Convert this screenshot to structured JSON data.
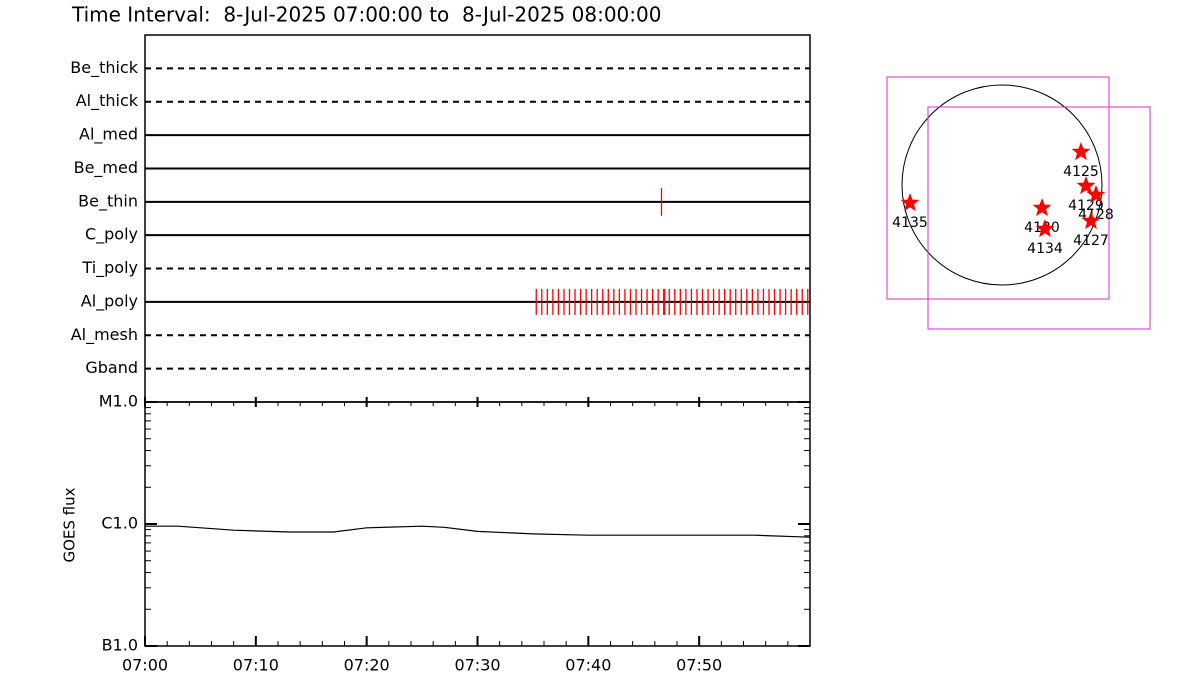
{
  "chart_data": [
    {
      "type": "event",
      "title": "Time Interval:  8-Jul-2025 07:00:00 to  8-Jul-2025 08:00:00",
      "xlim": [
        0,
        60
      ],
      "color": "#ff0000",
      "rows": [
        {
          "name": "Be_thick",
          "style": "dashed",
          "events": []
        },
        {
          "name": "Al_thick",
          "style": "dashed",
          "events": []
        },
        {
          "name": "Al_med",
          "style": "solid",
          "events": []
        },
        {
          "name": "Be_med",
          "style": "solid",
          "events": []
        },
        {
          "name": "Be_thin",
          "style": "solid",
          "events": [
            46.6
          ]
        },
        {
          "name": "C_poly",
          "style": "solid",
          "events": []
        },
        {
          "name": "Ti_poly",
          "style": "dashed",
          "events": []
        },
        {
          "name": "Al_poly",
          "style": "solid",
          "events": [
            35.3,
            35.8,
            36.3,
            36.8,
            37.3,
            37.8,
            38.3,
            38.8,
            39.3,
            39.8,
            40.3,
            40.8,
            41.3,
            41.8,
            42.3,
            42.8,
            43.3,
            43.8,
            44.3,
            44.8,
            45.3,
            45.8,
            46.3,
            46.8,
            46.9,
            47.3,
            47.8,
            48.3,
            48.8,
            49.3,
            49.8,
            50.3,
            50.8,
            51.3,
            51.8,
            52.3,
            52.8,
            53.3,
            53.8,
            54.3,
            54.8,
            55.3,
            55.8,
            56.3,
            56.8,
            57.3,
            57.8,
            58.3,
            58.8,
            59.3,
            59.8
          ]
        },
        {
          "name": "Al_mesh",
          "style": "dashed",
          "events": []
        },
        {
          "name": "Gband",
          "style": "dashed",
          "events": []
        }
      ]
    },
    {
      "type": "line",
      "ylabel": "GOES flux",
      "log": true,
      "color": "#000000",
      "xlim": [
        0,
        60
      ],
      "xticks": [
        {
          "value": 0,
          "label": "07:00"
        },
        {
          "value": 10,
          "label": "07:10"
        },
        {
          "value": 20,
          "label": "07:20"
        },
        {
          "value": 30,
          "label": "07:30"
        },
        {
          "value": 40,
          "label": "07:40"
        },
        {
          "value": 50,
          "label": "07:50"
        }
      ],
      "ylim": [
        1e-07,
        1e-05
      ],
      "yticks": [
        {
          "value": 1e-07,
          "label": "B1.0"
        },
        {
          "value": 1e-06,
          "label": "C1.0"
        },
        {
          "value": 1e-05,
          "label": "M1.0"
        }
      ],
      "x": [
        0,
        3,
        8,
        13,
        17,
        20,
        25,
        27,
        30,
        35,
        40,
        45,
        50,
        55,
        60
      ],
      "values": [
        9.6e-07,
        9.6e-07,
        8.9e-07,
        8.6e-07,
        8.6e-07,
        9.3e-07,
        9.6e-07,
        9.4e-07,
        8.7e-07,
        8.3e-07,
        8.1e-07,
        8.1e-07,
        8.1e-07,
        8.1e-07,
        7.8e-07
      ]
    },
    {
      "type": "map",
      "disk_color": "#000000",
      "star_color": "#ff0000",
      "box_color": "#cc33cc",
      "regions": [
        {
          "name": "4125",
          "x": 0.79,
          "y": 0.33
        },
        {
          "name": "4129",
          "x": 0.84,
          "y": -0.01
        },
        {
          "name": "4128",
          "x": 0.94,
          "y": -0.1
        },
        {
          "name": "4130",
          "x": 0.4,
          "y": -0.23
        },
        {
          "name": "4134",
          "x": 0.43,
          "y": -0.44
        },
        {
          "name": "4127",
          "x": 0.89,
          "y": -0.36
        },
        {
          "name": "4135",
          "x": -0.92,
          "y": -0.18
        }
      ],
      "boxes": [
        {
          "x": -0.04,
          "y": -0.03,
          "size": 2.22
        },
        {
          "x": 0.37,
          "y": -0.33,
          "size": 2.22
        }
      ]
    }
  ]
}
